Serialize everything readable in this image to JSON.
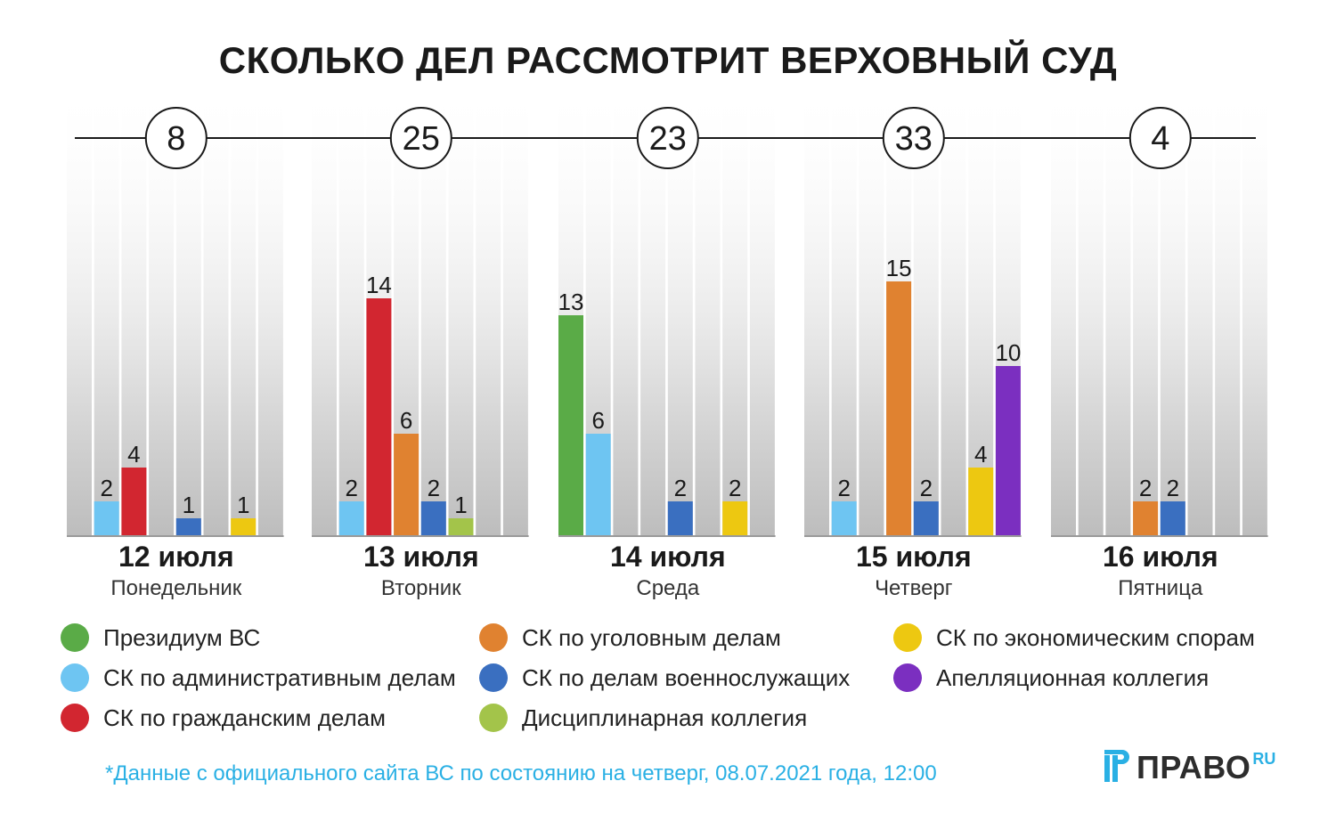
{
  "title": "СКОЛЬКО ДЕЛ РАССМОТРИТ ВЕРХОВНЫЙ СУД",
  "chart_data": {
    "type": "bar",
    "title": "СКОЛЬКО ДЕЛ РАССМОТРИТ ВЕРХОВНЫЙ СУД",
    "ylim": [
      0,
      16
    ],
    "categories": [
      {
        "date": "12 июля",
        "weekday": "Понедельник",
        "total": "8"
      },
      {
        "date": "13 июля",
        "weekday": "Вторник",
        "total": "25"
      },
      {
        "date": "14 июля",
        "weekday": "Среда",
        "total": "23"
      },
      {
        "date": "15 июля",
        "weekday": "Четверг",
        "total": "33"
      },
      {
        "date": "16 июля",
        "weekday": "Пятница",
        "total": "4"
      }
    ],
    "series": [
      {
        "name": "Президиум ВС",
        "color": "#5aab47",
        "values": [
          0,
          0,
          13,
          0,
          0
        ]
      },
      {
        "name": "СК по административным делам",
        "color": "#6ec5f2",
        "values": [
          2,
          2,
          6,
          2,
          0
        ]
      },
      {
        "name": "СК по гражданским делам",
        "color": "#d22630",
        "values": [
          4,
          14,
          0,
          0,
          0
        ]
      },
      {
        "name": "СК по уголовным делам",
        "color": "#e08230",
        "values": [
          0,
          6,
          0,
          15,
          2
        ]
      },
      {
        "name": "СК по делам военнослужащих",
        "color": "#3a6fc0",
        "values": [
          1,
          2,
          2,
          2,
          2
        ]
      },
      {
        "name": "Дисциплинарная коллегия",
        "color": "#a3c44a",
        "values": [
          0,
          1,
          0,
          0,
          0
        ]
      },
      {
        "name": "СК по экономическим спорам",
        "color": "#edc811",
        "values": [
          1,
          0,
          2,
          4,
          0
        ]
      },
      {
        "name": "Апелляционная коллегия",
        "color": "#7b2fc0",
        "values": [
          0,
          0,
          0,
          10,
          0
        ]
      }
    ]
  },
  "footnote": "*Данные с официального сайта ВС по состоянию на четверг, 08.07.2021 года, 12:00",
  "logo": {
    "text": "ПРАВО",
    "suffix": "RU"
  }
}
